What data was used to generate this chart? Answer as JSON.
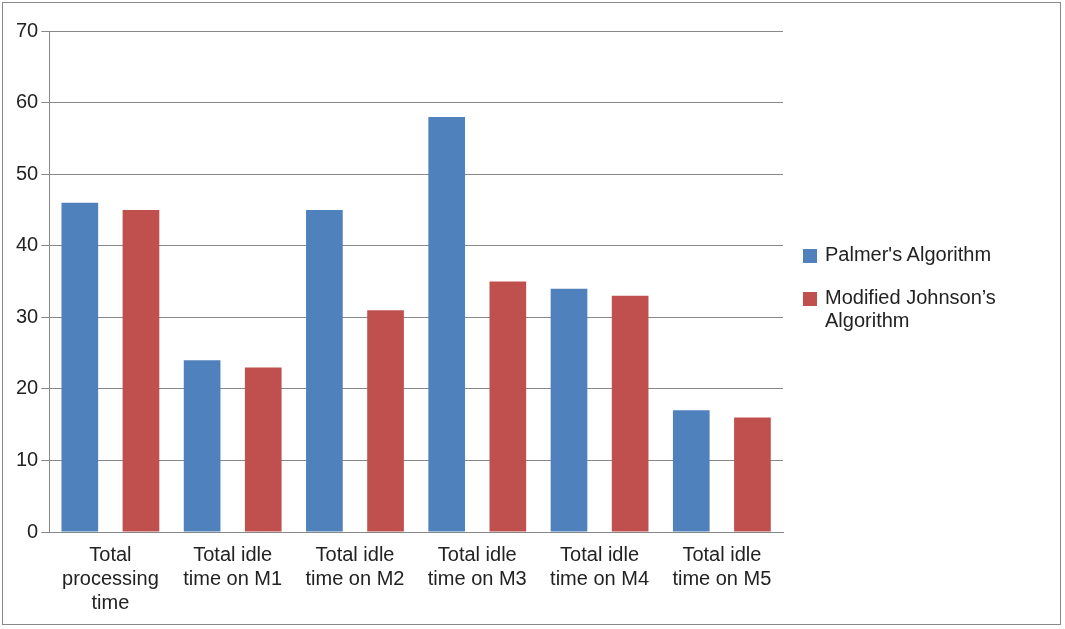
{
  "chart_data": {
    "type": "bar",
    "categories": [
      "Total processing time",
      "Total idle time on M1",
      "Total idle time on M2",
      "Total idle time on M3",
      "Total idle time on M4",
      "Total idle time on M5"
    ],
    "series": [
      {
        "name": "Palmer's Algorithm",
        "color": "#4f81bd",
        "values": [
          46,
          24,
          45,
          58,
          34,
          17
        ]
      },
      {
        "name": "Modified Johnson’s Algorithm",
        "color": "#c0504d",
        "values": [
          45,
          23,
          31,
          35,
          33,
          16
        ]
      }
    ],
    "ylim": [
      0,
      70
    ],
    "yticks": [
      0,
      10,
      20,
      30,
      40,
      50,
      60,
      70
    ],
    "grid": "y",
    "legend": "right"
  }
}
